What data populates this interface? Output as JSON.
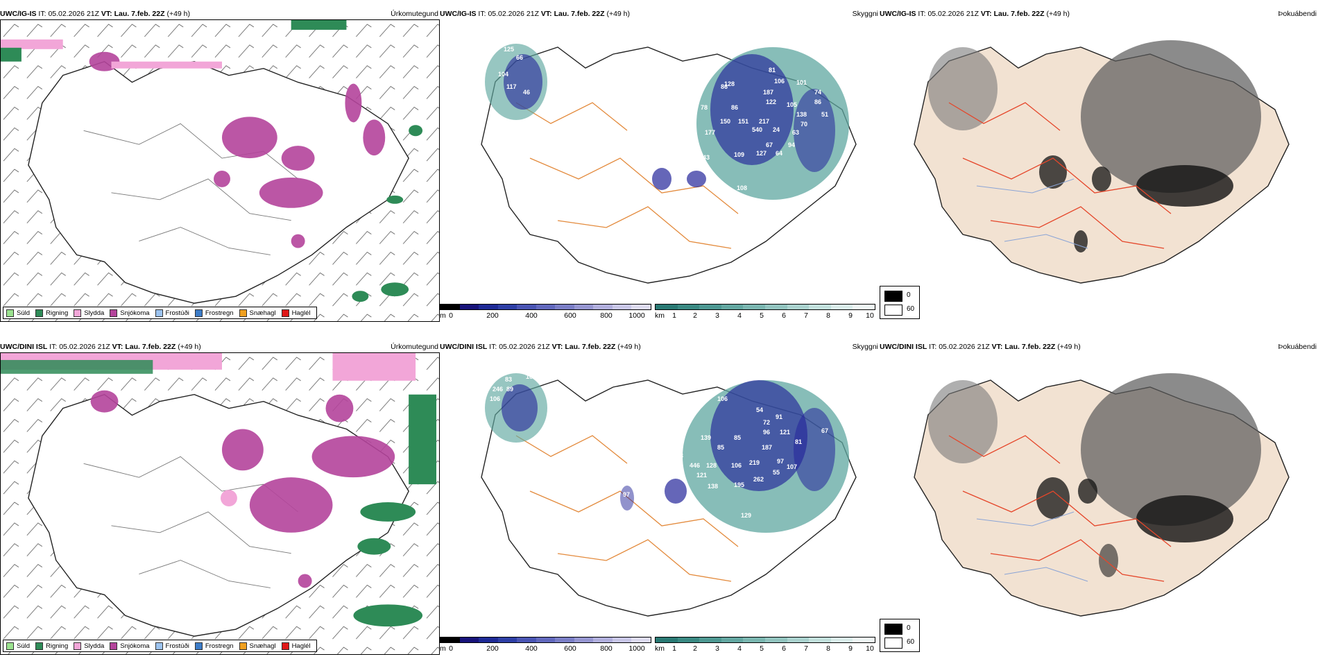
{
  "rows": [
    {
      "model": "UWC/IG-IS",
      "it_label": "IT:",
      "it_value": "05.02.2026 21Z",
      "vt_label": "VT:",
      "vt_value": "Lau. 7.feb. 22Z",
      "lead": "(+49 h)",
      "products": [
        "Úrkomutegund",
        "Skyggni",
        "Þokuábendi"
      ],
      "visibility_labels_m": [
        "125",
        "66",
        "117",
        "104",
        "46",
        "82",
        "93",
        "87",
        "86",
        "81",
        "106",
        "101",
        "128",
        "187",
        "122",
        "105",
        "86",
        "78",
        "84",
        "150",
        "151",
        "217",
        "540",
        "24",
        "64",
        "127",
        "109",
        "222",
        "143",
        "177",
        "106",
        "65",
        "138",
        "70",
        "86",
        "74",
        "51",
        "94",
        "67",
        "63",
        "108"
      ]
    },
    {
      "model": "UWC/DINI ISL",
      "it_label": "IT:",
      "it_value": "05.02.2026 21Z",
      "vt_label": "VT:",
      "vt_value": "Lau. 7.feb. 22Z",
      "lead": "(+49 h)",
      "products": [
        "Úrkomutegund",
        "Skyggni",
        "Þokuábendi"
      ],
      "visibility_labels_m": [
        "83",
        "89",
        "246",
        "106",
        "165",
        "106",
        "54",
        "72",
        "96",
        "121",
        "81",
        "67",
        "72",
        "125",
        "153",
        "139",
        "85",
        "91",
        "446",
        "128",
        "106",
        "219",
        "187",
        "97",
        "61",
        "121",
        "138",
        "195",
        "262",
        "55",
        "107",
        "129",
        "97",
        "85"
      ]
    }
  ],
  "precip_legend": [
    {
      "label": "Súld",
      "color": "#9be28f"
    },
    {
      "label": "Rigning",
      "color": "#2e8b57"
    },
    {
      "label": "Slydda",
      "color": "#f2a6d8"
    },
    {
      "label": "Snjókoma",
      "color": "#b4449b"
    },
    {
      "label": "Frostúði",
      "color": "#9cc3ef"
    },
    {
      "label": "Frostregn",
      "color": "#3c7cc8"
    },
    {
      "label": "Snæhagl",
      "color": "#f0a020"
    },
    {
      "label": "Haglél",
      "color": "#e01818"
    }
  ],
  "vis_scale_m": {
    "unit": "m",
    "ticks": [
      "0",
      "200",
      "400",
      "600",
      "800",
      "1000"
    ],
    "colors": [
      "#000000",
      "#17137a",
      "#1e2a96",
      "#2e3fa6",
      "#4a55b4",
      "#6269be",
      "#7b7fc7",
      "#9797d2",
      "#b2b0de",
      "#cac8e8",
      "#dedcf1"
    ]
  },
  "vis_scale_km": {
    "unit": "km",
    "ticks": [
      "1",
      "2",
      "3",
      "4",
      "5",
      "6",
      "7",
      "8",
      "9",
      "10"
    ],
    "colors": [
      "#2a7a74",
      "#3a8a83",
      "#4e9993",
      "#64a8a2",
      "#7bb7b1",
      "#93c5c0",
      "#abd3cf",
      "#c3e1dd",
      "#dbeeeb",
      "#f0f8f7"
    ]
  },
  "fog_legend": {
    "high": "0",
    "low": "60",
    "high_color": "#000000",
    "low_color": "#ffffff"
  },
  "map_colors": {
    "precip_rain": "#2e8b57",
    "precip_snow": "#b4449b",
    "precip_sleet": "#f2a6d8",
    "vis_teal": "#5fa7a0",
    "vis_blue": "#24259a",
    "road_orange": "#e38a3c",
    "fog_land": "#f2e2d2",
    "fog_roads": "#e5462a",
    "fog_rivers": "#8aa4d6"
  },
  "icons": [
    "wind-barb-icon",
    "color-swatch-icon"
  ]
}
